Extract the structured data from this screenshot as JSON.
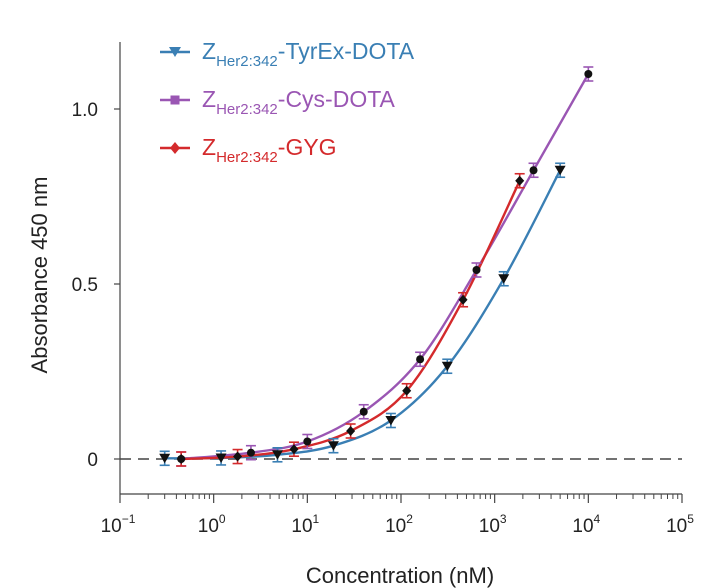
{
  "chart_data": {
    "type": "line",
    "title": "",
    "xlabel": "Concentration (nM)",
    "ylabel": "Absorbance 450 nm",
    "xscale": "log",
    "xlim_log10": [
      -1,
      5
    ],
    "ylim": [
      -0.1,
      1.2
    ],
    "x_ticks": [
      {
        "base": "10",
        "exp": "−1",
        "log": -1
      },
      {
        "base": "10",
        "exp": "0",
        "log": 0
      },
      {
        "base": "10",
        "exp": "1",
        "log": 1
      },
      {
        "base": "10",
        "exp": "2",
        "log": 2
      },
      {
        "base": "10",
        "exp": "3",
        "log": 3
      },
      {
        "base": "10",
        "exp": "4",
        "log": 4
      },
      {
        "base": "10",
        "exp": "5",
        "log": 5
      }
    ],
    "y_ticks": [
      {
        "label": "0",
        "value": 0
      },
      {
        "label": "0.5",
        "value": 0.5
      },
      {
        "label": "1.0",
        "value": 1.0
      }
    ],
    "baseline": 0,
    "legend_position": "top-left",
    "series": [
      {
        "name": "Z_Her2:342-TyrEx-DOTA",
        "legend": {
          "prefix": "Z",
          "sub": "Her2:342",
          "suffix": "-TyrEx-DOTA"
        },
        "color": "#3a7fb4",
        "marker": "triangle-down",
        "x": [
          0.3,
          1.2,
          4.8,
          19,
          78,
          312,
          1250,
          5000
        ],
        "y": [
          0.002,
          0.003,
          0.012,
          0.038,
          0.11,
          0.265,
          0.515,
          0.825
        ]
      },
      {
        "name": "Z_Her2:342-Cys-DOTA",
        "legend": {
          "prefix": "Z",
          "sub": "Her2:342",
          "suffix": "-Cys-DOTA"
        },
        "color": "#9a56b3",
        "marker": "square",
        "x": [
          0.45,
          2.5,
          10,
          40,
          160,
          640,
          2600,
          10000
        ],
        "y": [
          0.0,
          0.018,
          0.05,
          0.135,
          0.285,
          0.54,
          0.825,
          1.1
        ]
      },
      {
        "name": "Z_Her2:342-GYG",
        "legend": {
          "prefix": "Z",
          "sub": "Her2:342",
          "suffix": "-GYG"
        },
        "color": "#d42a2c",
        "marker": "diamond",
        "x": [
          0.45,
          1.8,
          7.2,
          29,
          115,
          460,
          1850
        ],
        "y": [
          0.0,
          0.007,
          0.028,
          0.08,
          0.195,
          0.455,
          0.795
        ]
      }
    ]
  }
}
